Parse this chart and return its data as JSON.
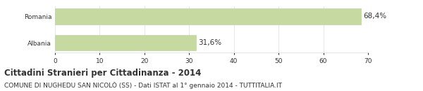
{
  "categories": [
    "Albania",
    "Romania"
  ],
  "values": [
    31.6,
    68.4
  ],
  "bar_color": "#c5d9a0",
  "bar_edge_color": "#b8cfa0",
  "labels": [
    "31,6%",
    "68,4%"
  ],
  "xlim": [
    0,
    70
  ],
  "xticks": [
    0,
    10,
    20,
    30,
    40,
    50,
    60,
    70
  ],
  "title": "Cittadini Stranieri per Cittadinanza - 2014",
  "subtitle": "COMUNE DI NUGHEDU SAN NICOLÒ (SS) - Dati ISTAT al 1° gennaio 2014 - TUTTITALIA.IT",
  "title_fontsize": 8.5,
  "subtitle_fontsize": 6.5,
  "label_fontsize": 7.5,
  "tick_fontsize": 6.5,
  "background_color": "#ffffff",
  "text_color": "#333333",
  "grid_color": "#dddddd"
}
